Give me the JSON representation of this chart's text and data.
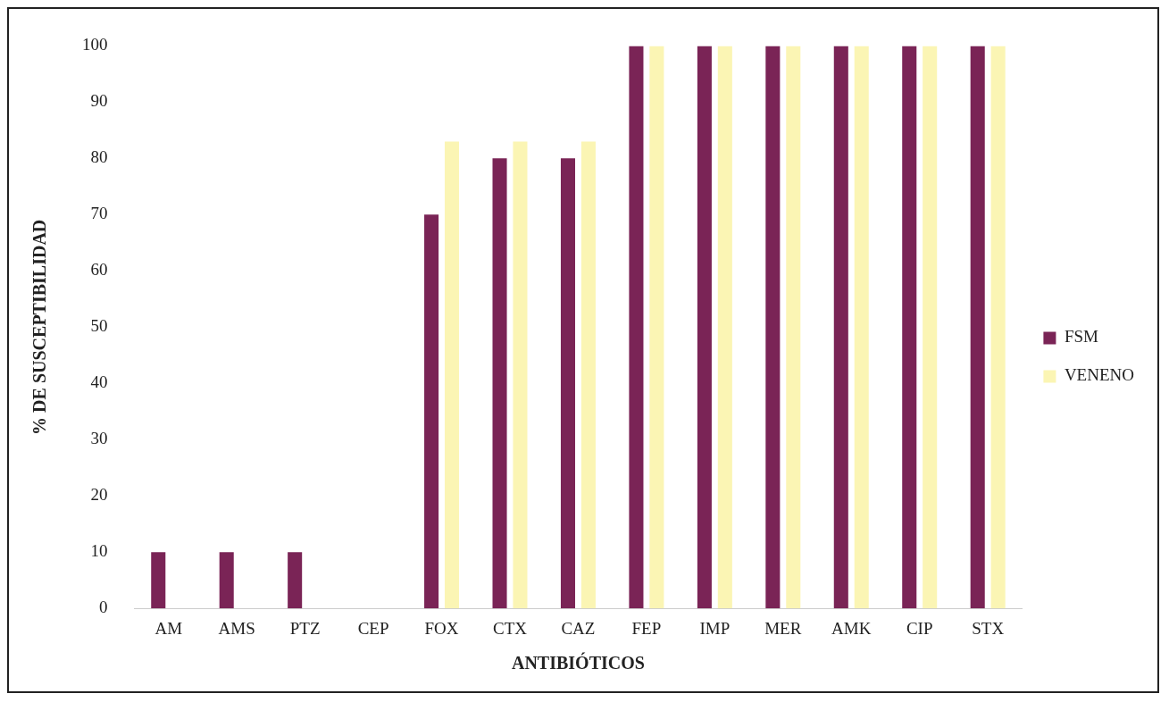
{
  "chart_data": {
    "type": "bar",
    "xlabel": "ANTIBIÓTICOS",
    "ylabel": "% DE SUSCEPTIBILIDAD",
    "categories": [
      "AM",
      "AMS",
      "PTZ",
      "CEP",
      "FOX",
      "CTX",
      "CAZ",
      "FEP",
      "IMP",
      "MER",
      "AMK",
      "CIP",
      "STX"
    ],
    "series": [
      {
        "name": "FSM",
        "color": "#7a2456",
        "values": [
          10,
          10,
          10,
          0,
          70,
          80,
          80,
          100,
          100,
          100,
          100,
          100,
          100
        ]
      },
      {
        "name": "VENENO",
        "color": "#fbf5b4",
        "values": [
          0,
          0,
          0,
          0,
          83,
          83,
          83,
          100,
          100,
          100,
          100,
          100,
          100
        ]
      }
    ],
    "ylim": [
      0,
      100
    ],
    "yticks": [
      0,
      10,
      20,
      30,
      40,
      50,
      60,
      70,
      80,
      90,
      100
    ],
    "grid": false,
    "legend": "right"
  }
}
